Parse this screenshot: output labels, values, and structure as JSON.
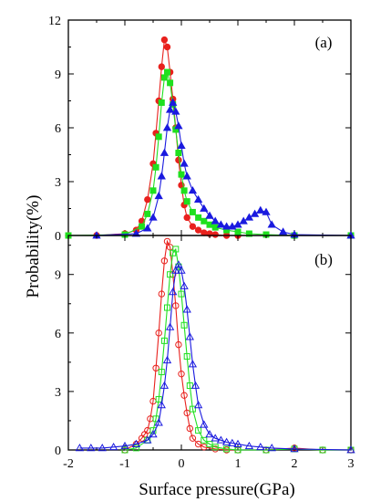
{
  "chart_data": [
    {
      "type": "line",
      "panel_label": "(a)",
      "xlim": [
        -2,
        3
      ],
      "ylim": [
        0,
        12
      ],
      "xticks": [
        "-2",
        "-1",
        "0",
        "1",
        "2",
        "3"
      ],
      "yticks": [
        "0",
        "3",
        "6",
        "9",
        "12"
      ],
      "grid": false,
      "series": [
        {
          "color": "#e8211d",
          "marker": "circle",
          "filled": true,
          "x": [
            -2.0,
            -1.5,
            -1.0,
            -0.8,
            -0.7,
            -0.6,
            -0.5,
            -0.45,
            -0.4,
            -0.35,
            -0.3,
            -0.25,
            -0.2,
            -0.15,
            -0.1,
            -0.05,
            0.0,
            0.05,
            0.1,
            0.2,
            0.3,
            0.4,
            0.5,
            0.6,
            0.8,
            1.0,
            2.0,
            3.0
          ],
          "y": [
            0.0,
            0.0,
            0.1,
            0.3,
            0.8,
            2.0,
            4.0,
            5.7,
            7.5,
            9.4,
            10.9,
            10.5,
            9.1,
            7.6,
            6.0,
            4.2,
            2.8,
            1.7,
            1.0,
            0.5,
            0.3,
            0.15,
            0.1,
            0.05,
            0.0,
            0.0,
            0.0,
            0.0
          ]
        },
        {
          "color": "#1fe01f",
          "marker": "square",
          "filled": true,
          "x": [
            -2.0,
            -1.0,
            -0.7,
            -0.6,
            -0.5,
            -0.45,
            -0.4,
            -0.35,
            -0.3,
            -0.25,
            -0.2,
            -0.15,
            -0.1,
            -0.05,
            0.0,
            0.05,
            0.1,
            0.2,
            0.3,
            0.4,
            0.5,
            0.6,
            0.8,
            1.0,
            1.2,
            1.5,
            2.0,
            3.0
          ],
          "y": [
            0.0,
            0.05,
            0.5,
            1.2,
            2.5,
            3.8,
            5.5,
            7.4,
            8.8,
            9.1,
            8.5,
            7.3,
            5.9,
            4.6,
            3.4,
            2.5,
            1.9,
            1.3,
            1.0,
            0.8,
            0.6,
            0.45,
            0.3,
            0.2,
            0.1,
            0.05,
            0.0,
            0.0
          ]
        },
        {
          "color": "#1a1adf",
          "marker": "triangle",
          "filled": true,
          "x": [
            -1.5,
            -0.8,
            -0.6,
            -0.5,
            -0.4,
            -0.35,
            -0.3,
            -0.25,
            -0.2,
            -0.15,
            -0.1,
            -0.05,
            0.0,
            0.05,
            0.1,
            0.2,
            0.3,
            0.4,
            0.5,
            0.6,
            0.7,
            0.8,
            0.9,
            1.0,
            1.1,
            1.2,
            1.3,
            1.4,
            1.5,
            1.6,
            1.8,
            2.0,
            3.0
          ],
          "y": [
            0.0,
            0.1,
            0.4,
            1.0,
            2.2,
            3.3,
            4.6,
            6.0,
            7.0,
            7.4,
            6.9,
            6.1,
            5.0,
            4.0,
            3.3,
            2.5,
            2.0,
            1.5,
            1.1,
            0.8,
            0.6,
            0.5,
            0.5,
            0.6,
            0.8,
            1.0,
            1.2,
            1.4,
            1.3,
            0.6,
            0.2,
            0.05,
            0.0
          ]
        }
      ]
    },
    {
      "type": "line",
      "panel_label": "(b)",
      "xlim": [
        -2,
        3
      ],
      "ylim": [
        0,
        11
      ],
      "xticks": [
        "-2",
        "-1",
        "0",
        "1",
        "2",
        "3"
      ],
      "yticks": [
        "0",
        "3",
        "6",
        "9"
      ],
      "grid": false,
      "xlabel": "Surface pressure(GPa)",
      "series": [
        {
          "color": "#e8211d",
          "marker": "circle",
          "filled": false,
          "x": [
            -1.0,
            -0.8,
            -0.7,
            -0.65,
            -0.6,
            -0.55,
            -0.5,
            -0.45,
            -0.4,
            -0.35,
            -0.3,
            -0.25,
            -0.2,
            -0.15,
            -0.1,
            -0.05,
            0.0,
            0.05,
            0.1,
            0.15,
            0.2,
            0.3,
            0.4,
            0.6,
            0.8,
            1.0,
            1.5,
            2.0,
            2.5,
            3.0
          ],
          "y": [
            0.0,
            0.3,
            0.6,
            0.8,
            1.0,
            1.6,
            2.5,
            4.2,
            6.0,
            8.0,
            9.7,
            10.7,
            10.4,
            9.0,
            7.4,
            5.4,
            3.9,
            2.8,
            1.9,
            1.1,
            0.6,
            0.3,
            0.15,
            0.05,
            0.0,
            0.0,
            0.0,
            0.1,
            0.0,
            0.0
          ]
        },
        {
          "color": "#1fe01f",
          "marker": "square",
          "filled": false,
          "x": [
            -1.0,
            -0.8,
            -0.6,
            -0.5,
            -0.45,
            -0.4,
            -0.35,
            -0.3,
            -0.25,
            -0.2,
            -0.15,
            -0.1,
            -0.05,
            0.0,
            0.05,
            0.1,
            0.15,
            0.2,
            0.3,
            0.4,
            0.5,
            0.6,
            0.8,
            1.0,
            1.5,
            2.0,
            2.5,
            3.0
          ],
          "y": [
            0.0,
            0.1,
            0.5,
            1.0,
            1.6,
            2.6,
            4.0,
            5.6,
            7.3,
            9.0,
            10.1,
            10.3,
            9.4,
            8.0,
            6.4,
            4.8,
            3.3,
            2.1,
            1.0,
            0.5,
            0.3,
            0.15,
            0.05,
            0.0,
            0.0,
            0.05,
            0.0,
            0.0
          ]
        },
        {
          "color": "#1a1adf",
          "marker": "triangle",
          "filled": false,
          "x": [
            -1.8,
            -1.6,
            -1.4,
            -1.2,
            -1.0,
            -0.8,
            -0.6,
            -0.5,
            -0.4,
            -0.35,
            -0.3,
            -0.25,
            -0.2,
            -0.15,
            -0.1,
            -0.05,
            0.0,
            0.05,
            0.1,
            0.15,
            0.2,
            0.25,
            0.3,
            0.4,
            0.5,
            0.6,
            0.7,
            0.8,
            0.9,
            1.0,
            1.2,
            1.4,
            1.6,
            2.0,
            3.0
          ],
          "y": [
            0.1,
            0.1,
            0.1,
            0.15,
            0.2,
            0.3,
            0.5,
            0.8,
            1.4,
            2.3,
            3.3,
            4.6,
            6.3,
            8.1,
            9.2,
            9.5,
            9.2,
            8.4,
            7.2,
            5.8,
            4.4,
            3.3,
            2.3,
            1.3,
            0.8,
            0.6,
            0.5,
            0.4,
            0.35,
            0.3,
            0.2,
            0.15,
            0.1,
            0.05,
            0.0
          ]
        }
      ]
    }
  ],
  "axes": {
    "ylabel": "Probability(%)",
    "xlabel": "Surface pressure(GPa)"
  }
}
